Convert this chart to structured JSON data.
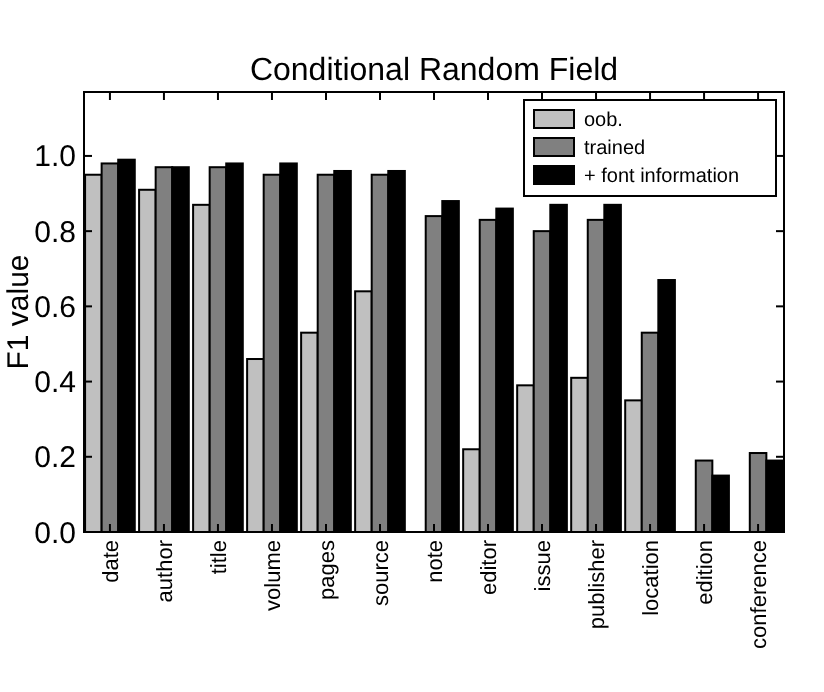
{
  "chart_data": {
    "type": "bar",
    "title": "Conditional Random Field",
    "ylabel": "F1 value",
    "categories": [
      "date",
      "author",
      "title",
      "volume",
      "pages",
      "source",
      "note",
      "editor",
      "issue",
      "publisher",
      "location",
      "edition",
      "conference"
    ],
    "series": [
      {
        "name": "oob.",
        "color": "#c0c0c0",
        "values": [
          0.95,
          0.91,
          0.87,
          0.46,
          0.53,
          0.64,
          0,
          0.22,
          0.39,
          0.41,
          0.35,
          0,
          0
        ]
      },
      {
        "name": "trained",
        "color": "#808080",
        "values": [
          0.98,
          0.97,
          0.97,
          0.95,
          0.95,
          0.95,
          0.84,
          0.83,
          0.8,
          0.83,
          0.53,
          0.19,
          0.21
        ]
      },
      {
        "name": "+ font information",
        "color": "#000000",
        "values": [
          0.99,
          0.97,
          0.98,
          0.98,
          0.96,
          0.96,
          0.88,
          0.86,
          0.87,
          0.87,
          0.67,
          0.15,
          0.19
        ]
      }
    ],
    "ylim": [
      0,
      1.17
    ],
    "yticks": [
      {
        "value": 0,
        "label": "0.0"
      },
      {
        "value": 0.2,
        "label": "0.2"
      },
      {
        "value": 0.4,
        "label": "0.4"
      },
      {
        "value": 0.6,
        "label": "0.6"
      },
      {
        "value": 0.8,
        "label": "0.8"
      },
      {
        "value": 1,
        "label": "1.0"
      }
    ],
    "grid": false,
    "legend": "top right"
  }
}
